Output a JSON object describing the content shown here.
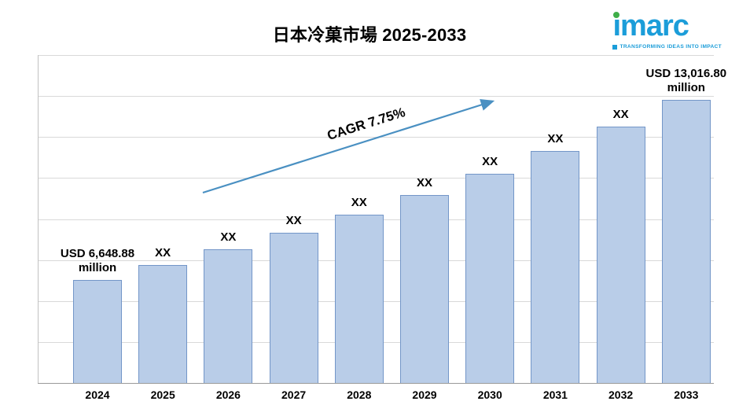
{
  "header": {
    "title_market": "日本冷菓市場",
    "title_period": "2025-2033"
  },
  "logo": {
    "name": "imarc",
    "tagline": "TRANSFORMING IDEAS INTO IMPACT"
  },
  "colors": {
    "bar_fill": "#b9cde8",
    "bar_border": "#7396c8",
    "arrow": "#4a90c2",
    "grid": "#d9d9d9",
    "logo_blue": "#1b9dd9",
    "logo_green": "#3fae49"
  },
  "chart_data": {
    "type": "bar",
    "title": "日本冷菓市場 2025-2033",
    "xlabel": "",
    "ylabel": "",
    "unit": "USD million",
    "categories": [
      "2024",
      "2025",
      "2026",
      "2027",
      "2028",
      "2029",
      "2030",
      "2031",
      "2032",
      "2033"
    ],
    "values": [
      6648.88,
      7164.17,
      7719.39,
      8317.64,
      8962.26,
      9656.83,
      10405.24,
      11211.65,
      12080.55,
      13016.8
    ],
    "bar_labels": [
      "USD 6,648.88\nmillion",
      "XX",
      "XX",
      "XX",
      "XX",
      "XX",
      "XX",
      "XX",
      "XX",
      "USD 13,016.80\nmillion"
    ],
    "cagr_text": "CAGR 7.75%",
    "ylim": [
      3000,
      14600
    ],
    "gridlines": 8,
    "grid": "horizontal",
    "legend": "none"
  }
}
